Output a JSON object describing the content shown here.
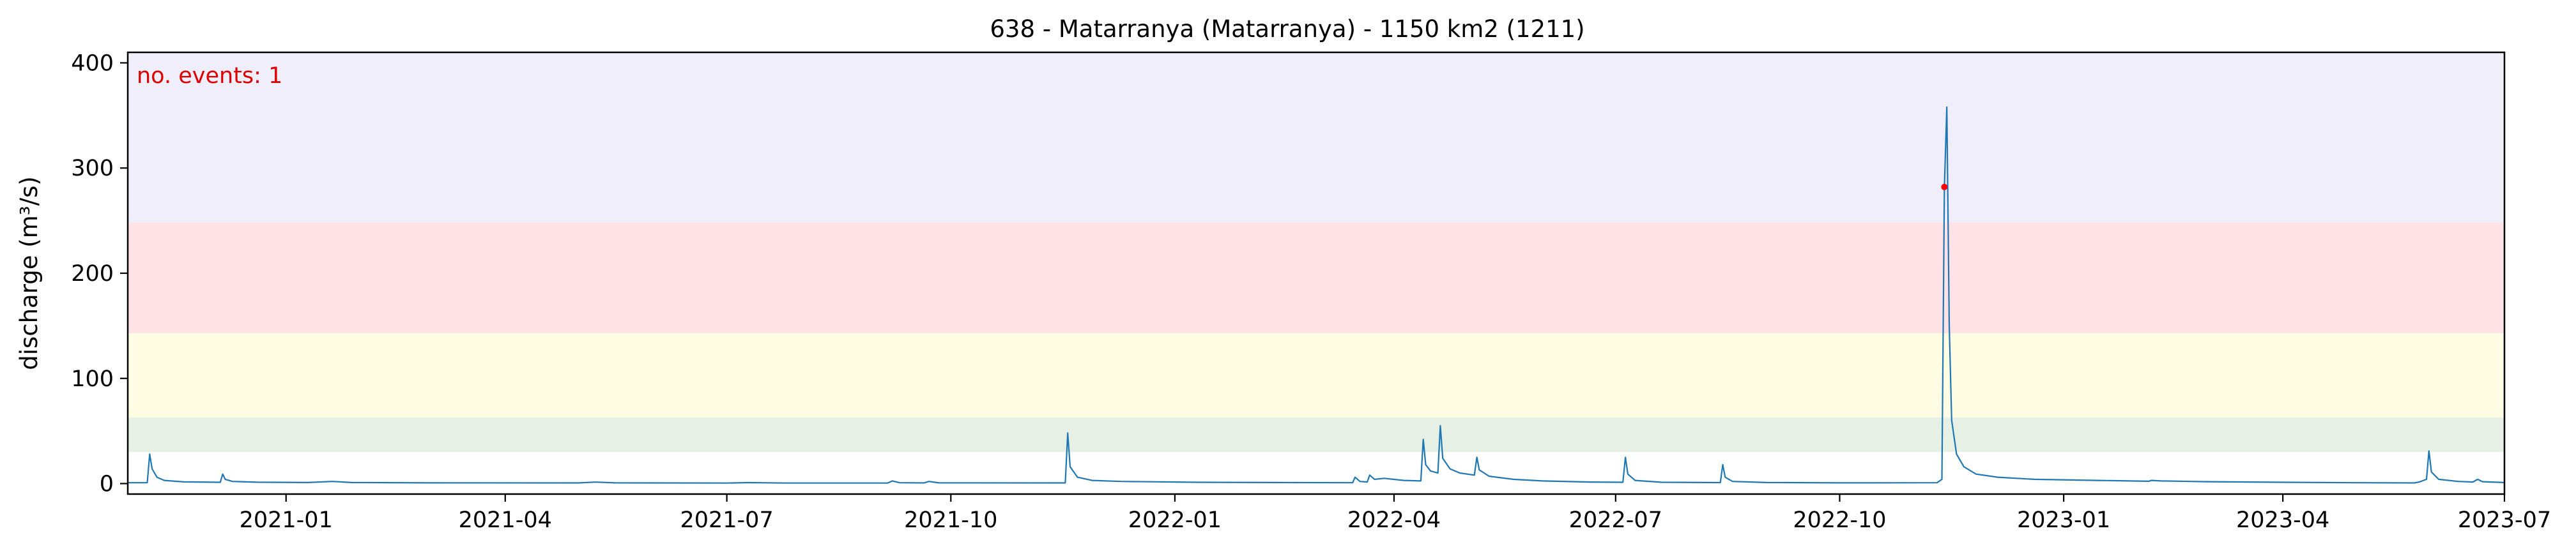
{
  "chart_data": {
    "type": "line",
    "title": "638 - Matarranya (Matarranya) - 1150 km2 (1211)",
    "xlabel": "",
    "ylabel": "discharge (m³/s)",
    "xlim": [
      "2020-10-28",
      "2023-07-01"
    ],
    "ylim": [
      -10,
      410
    ],
    "x_ticks": [
      "2021-01",
      "2021-04",
      "2021-07",
      "2021-10",
      "2022-01",
      "2022-04",
      "2022-07",
      "2022-10",
      "2023-01",
      "2023-04",
      "2023-07"
    ],
    "y_ticks": [
      0,
      100,
      200,
      300,
      400
    ],
    "grid": false,
    "annotation": "no. events: 1",
    "bands": [
      {
        "from": 30,
        "to": 63,
        "color": "#e6f0e4"
      },
      {
        "from": 63,
        "to": 143,
        "color": "#fefde4"
      },
      {
        "from": 143,
        "to": 248,
        "color": "#ffe2e5"
      },
      {
        "from": 248,
        "to": 410,
        "color": "#f1eefb"
      }
    ],
    "line_color": "#1f77b4",
    "event_color": "#ff0000",
    "events": [
      {
        "x": "2022-11-13",
        "y": 282
      }
    ],
    "series": [
      {
        "values": [
          [
            "2020-10-28",
            0.8
          ],
          [
            "2020-11-05",
            0.8
          ],
          [
            "2020-11-06",
            28
          ],
          [
            "2020-11-07",
            14
          ],
          [
            "2020-11-09",
            6
          ],
          [
            "2020-11-12",
            3
          ],
          [
            "2020-11-20",
            1.6
          ],
          [
            "2020-12-05",
            1.2
          ],
          [
            "2020-12-06",
            9
          ],
          [
            "2020-12-07",
            4
          ],
          [
            "2020-12-10",
            2
          ],
          [
            "2020-12-20",
            1.3
          ],
          [
            "2021-01-10",
            1
          ],
          [
            "2021-01-20",
            2
          ],
          [
            "2021-01-28",
            1
          ],
          [
            "2021-03-01",
            0.7
          ],
          [
            "2021-05-01",
            0.6
          ],
          [
            "2021-05-08",
            1.4
          ],
          [
            "2021-05-16",
            0.7
          ],
          [
            "2021-07-01",
            0.5
          ],
          [
            "2021-07-10",
            0.9
          ],
          [
            "2021-07-25",
            0.5
          ],
          [
            "2021-09-05",
            0.5
          ],
          [
            "2021-09-07",
            2.5
          ],
          [
            "2021-09-10",
            0.8
          ],
          [
            "2021-09-20",
            0.6
          ],
          [
            "2021-09-22",
            2
          ],
          [
            "2021-09-26",
            0.7
          ],
          [
            "2021-11-17",
            0.6
          ],
          [
            "2021-11-18",
            48
          ],
          [
            "2021-11-19",
            16
          ],
          [
            "2021-11-22",
            6
          ],
          [
            "2021-11-28",
            3
          ],
          [
            "2021-12-10",
            2
          ],
          [
            "2022-01-10",
            1.2
          ],
          [
            "2022-02-20",
            0.9
          ],
          [
            "2022-03-15",
            0.8
          ],
          [
            "2022-03-16",
            6
          ],
          [
            "2022-03-18",
            2
          ],
          [
            "2022-03-21",
            1.5
          ],
          [
            "2022-03-22",
            8
          ],
          [
            "2022-03-24",
            4
          ],
          [
            "2022-03-28",
            5
          ],
          [
            "2022-04-05",
            3
          ],
          [
            "2022-04-12",
            2.5
          ],
          [
            "2022-04-13",
            42
          ],
          [
            "2022-04-14",
            18
          ],
          [
            "2022-04-16",
            12
          ],
          [
            "2022-04-19",
            10
          ],
          [
            "2022-04-20",
            55
          ],
          [
            "2022-04-21",
            24
          ],
          [
            "2022-04-24",
            14
          ],
          [
            "2022-04-28",
            10
          ],
          [
            "2022-05-04",
            8
          ],
          [
            "2022-05-05",
            25
          ],
          [
            "2022-05-06",
            13
          ],
          [
            "2022-05-10",
            7
          ],
          [
            "2022-05-20",
            4
          ],
          [
            "2022-06-01",
            2.5
          ],
          [
            "2022-06-20",
            1.5
          ],
          [
            "2022-07-04",
            1.2
          ],
          [
            "2022-07-05",
            25
          ],
          [
            "2022-07-06",
            9
          ],
          [
            "2022-07-09",
            3
          ],
          [
            "2022-07-20",
            1.2
          ],
          [
            "2022-08-13",
            0.9
          ],
          [
            "2022-08-14",
            18
          ],
          [
            "2022-08-15",
            6
          ],
          [
            "2022-08-18",
            2
          ],
          [
            "2022-09-01",
            1
          ],
          [
            "2022-10-01",
            0.7
          ],
          [
            "2022-11-10",
            0.8
          ],
          [
            "2022-11-12",
            4
          ],
          [
            "2022-11-13",
            282
          ],
          [
            "2022-11-14",
            358
          ],
          [
            "2022-11-15",
            150
          ],
          [
            "2022-11-16",
            60
          ],
          [
            "2022-11-18",
            28
          ],
          [
            "2022-11-21",
            16
          ],
          [
            "2022-11-26",
            9
          ],
          [
            "2022-12-05",
            6
          ],
          [
            "2022-12-20",
            4
          ],
          [
            "2023-01-15",
            3
          ],
          [
            "2023-02-05",
            2.2
          ],
          [
            "2023-02-06",
            3
          ],
          [
            "2023-02-10",
            2.5
          ],
          [
            "2023-03-01",
            1.8
          ],
          [
            "2023-04-01",
            1.2
          ],
          [
            "2023-05-01",
            0.8
          ],
          [
            "2023-05-25",
            0.6
          ],
          [
            "2023-05-27",
            1.5
          ],
          [
            "2023-05-30",
            4
          ],
          [
            "2023-05-31",
            31
          ],
          [
            "2023-06-01",
            11
          ],
          [
            "2023-06-04",
            4
          ],
          [
            "2023-06-12",
            2
          ],
          [
            "2023-06-18",
            1.5
          ],
          [
            "2023-06-20",
            4
          ],
          [
            "2023-06-22",
            1.8
          ],
          [
            "2023-07-01",
            1
          ]
        ]
      }
    ]
  }
}
